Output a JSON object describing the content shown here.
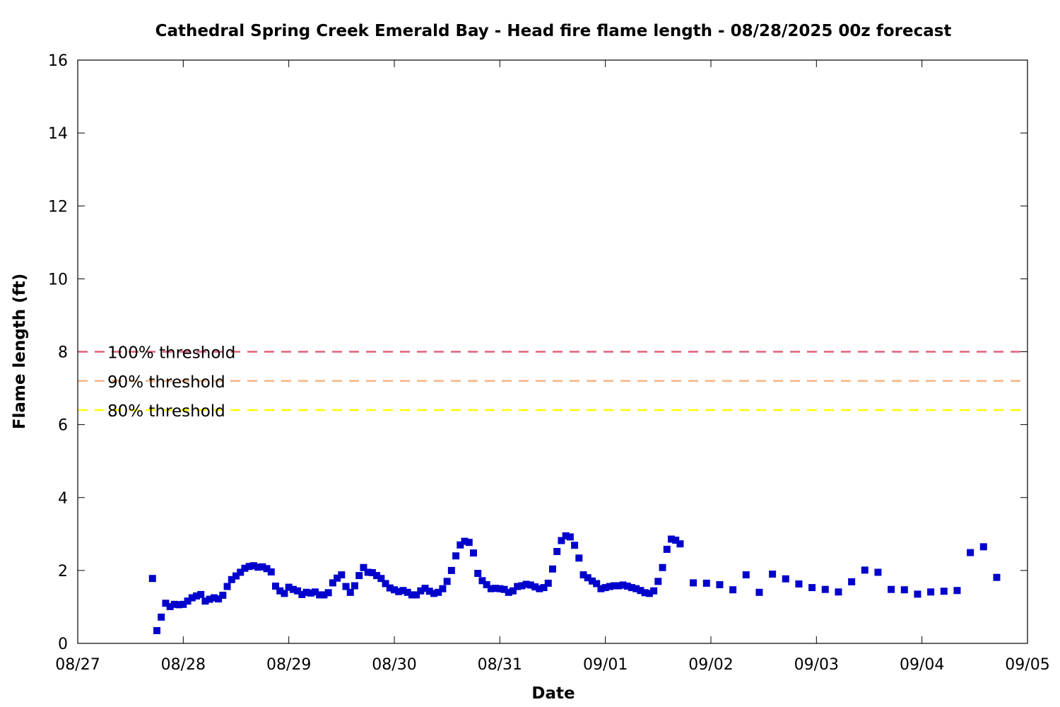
{
  "chart_data": {
    "type": "scatter",
    "title": "Cathedral Spring Creek Emerald Bay - Head fire flame length - 08/28/2025 00z forecast",
    "xlabel": "Date",
    "ylabel": "Flame length (ft)",
    "x_start": "2025-08-27T00:00",
    "xlim": [
      "08/27",
      "09/05"
    ],
    "x_ticks": [
      "08/27",
      "08/28",
      "08/29",
      "08/30",
      "08/31",
      "09/01",
      "09/02",
      "09/03",
      "09/04",
      "09/05"
    ],
    "ylim": [
      0,
      16
    ],
    "y_ticks": [
      "0",
      "2",
      "4",
      "6",
      "8",
      "10",
      "12",
      "14",
      "16"
    ],
    "grid": false,
    "series_color": "#0000cc",
    "thresholds": [
      {
        "label": "100% threshold",
        "value": 8.0,
        "color": "#e0607a"
      },
      {
        "label": "90% threshold",
        "value": 7.2,
        "color": "#f5b585"
      },
      {
        "label": "80% threshold",
        "value": 6.4,
        "color": "#ffff00"
      }
    ],
    "series": [
      {
        "x": [
          "08/27 17:00",
          "08/27 18:00",
          "08/27 19:00",
          "08/27 20:00",
          "08/27 21:00",
          "08/27 22:00",
          "08/27 23:00",
          "08/28 00:00",
          "08/28 01:00",
          "08/28 02:00",
          "08/28 03:00",
          "08/28 04:00",
          "08/28 05:00",
          "08/28 06:00",
          "08/28 07:00",
          "08/28 08:00",
          "08/28 09:00",
          "08/28 10:00",
          "08/28 11:00",
          "08/28 12:00",
          "08/28 13:00",
          "08/28 14:00",
          "08/28 15:00",
          "08/28 16:00",
          "08/28 17:00",
          "08/28 18:00",
          "08/28 19:00",
          "08/28 20:00",
          "08/28 21:00",
          "08/28 22:00",
          "08/28 23:00",
          "08/29 00:00",
          "08/29 01:00",
          "08/29 02:00",
          "08/29 03:00",
          "08/29 04:00",
          "08/29 05:00",
          "08/29 06:00",
          "08/29 07:00",
          "08/29 08:00",
          "08/29 09:00",
          "08/29 10:00",
          "08/29 11:00",
          "08/29 12:00",
          "08/29 13:00",
          "08/29 14:00",
          "08/29 15:00",
          "08/29 16:00",
          "08/29 17:00",
          "08/29 18:00",
          "08/29 19:00",
          "08/29 20:00",
          "08/29 21:00",
          "08/29 22:00",
          "08/29 23:00",
          "08/30 00:00",
          "08/30 01:00",
          "08/30 02:00",
          "08/30 03:00",
          "08/30 04:00",
          "08/30 05:00",
          "08/30 06:00",
          "08/30 07:00",
          "08/30 08:00",
          "08/30 09:00",
          "08/30 10:00",
          "08/30 11:00",
          "08/30 12:00",
          "08/30 13:00",
          "08/30 14:00",
          "08/30 15:00",
          "08/30 16:00",
          "08/30 17:00",
          "08/30 18:00",
          "08/30 19:00",
          "08/30 20:00",
          "08/30 21:00",
          "08/30 22:00",
          "08/30 23:00",
          "08/31 00:00",
          "08/31 01:00",
          "08/31 02:00",
          "08/31 03:00",
          "08/31 04:00",
          "08/31 05:00",
          "08/31 06:00",
          "08/31 07:00",
          "08/31 08:00",
          "08/31 09:00",
          "08/31 10:00",
          "08/31 11:00",
          "08/31 12:00",
          "08/31 13:00",
          "08/31 14:00",
          "08/31 15:00",
          "08/31 16:00",
          "08/31 17:00",
          "08/31 18:00",
          "08/31 19:00",
          "08/31 20:00",
          "08/31 21:00",
          "08/31 22:00",
          "08/31 23:00",
          "09/01 00:00",
          "09/01 01:00",
          "09/01 02:00",
          "09/01 03:00",
          "09/01 04:00",
          "09/01 05:00",
          "09/01 06:00",
          "09/01 07:00",
          "09/01 08:00",
          "09/01 09:00",
          "09/01 10:00",
          "09/01 11:00",
          "09/01 12:00",
          "09/01 13:00",
          "09/01 14:00",
          "09/01 15:00",
          "09/01 16:00",
          "09/01 17:00",
          "09/01 20:00",
          "09/01 23:00",
          "09/02 02:00",
          "09/02 05:00",
          "09/02 08:00",
          "09/02 11:00",
          "09/02 14:00",
          "09/02 17:00",
          "09/02 20:00",
          "09/02 23:00",
          "09/03 02:00",
          "09/03 05:00",
          "09/03 08:00",
          "09/03 11:00",
          "09/03 14:00",
          "09/03 17:00",
          "09/03 20:00",
          "09/03 23:00",
          "09/04 02:00",
          "09/04 05:00",
          "09/04 08:00",
          "09/04 11:00",
          "09/04 14:00",
          "09/04 17:00"
        ],
        "y": [
          1.78,
          0.35,
          0.72,
          1.1,
          1.01,
          1.07,
          1.06,
          1.07,
          1.16,
          1.25,
          1.3,
          1.34,
          1.16,
          1.21,
          1.25,
          1.22,
          1.32,
          1.56,
          1.75,
          1.85,
          1.95,
          2.06,
          2.11,
          2.13,
          2.09,
          2.1,
          2.05,
          1.96,
          1.57,
          1.44,
          1.37,
          1.54,
          1.48,
          1.44,
          1.34,
          1.4,
          1.38,
          1.41,
          1.33,
          1.33,
          1.39,
          1.66,
          1.79,
          1.88,
          1.56,
          1.4,
          1.58,
          1.86,
          2.08,
          1.95,
          1.94,
          1.86,
          1.78,
          1.64,
          1.52,
          1.47,
          1.42,
          1.45,
          1.4,
          1.33,
          1.33,
          1.44,
          1.51,
          1.43,
          1.37,
          1.4,
          1.5,
          1.7,
          2.0,
          2.4,
          2.7,
          2.8,
          2.77,
          2.48,
          1.92,
          1.72,
          1.61,
          1.5,
          1.51,
          1.5,
          1.48,
          1.4,
          1.44,
          1.56,
          1.58,
          1.62,
          1.6,
          1.55,
          1.5,
          1.53,
          1.65,
          2.04,
          2.52,
          2.82,
          2.95,
          2.92,
          2.69,
          2.34,
          1.88,
          1.8,
          1.71,
          1.64,
          1.5,
          1.53,
          1.56,
          1.58,
          1.58,
          1.6,
          1.57,
          1.53,
          1.5,
          1.45,
          1.39,
          1.37,
          1.44,
          1.7,
          2.08,
          2.58,
          2.86,
          2.83,
          2.73,
          1.66,
          1.65,
          1.61,
          1.47,
          1.88,
          1.4,
          1.9,
          1.77,
          1.63,
          1.53,
          1.48,
          1.41,
          1.69,
          2.01,
          1.95,
          1.48,
          1.47,
          1.35,
          1.41,
          1.43,
          1.45,
          2.49,
          2.65,
          1.81
        ]
      }
    ]
  }
}
